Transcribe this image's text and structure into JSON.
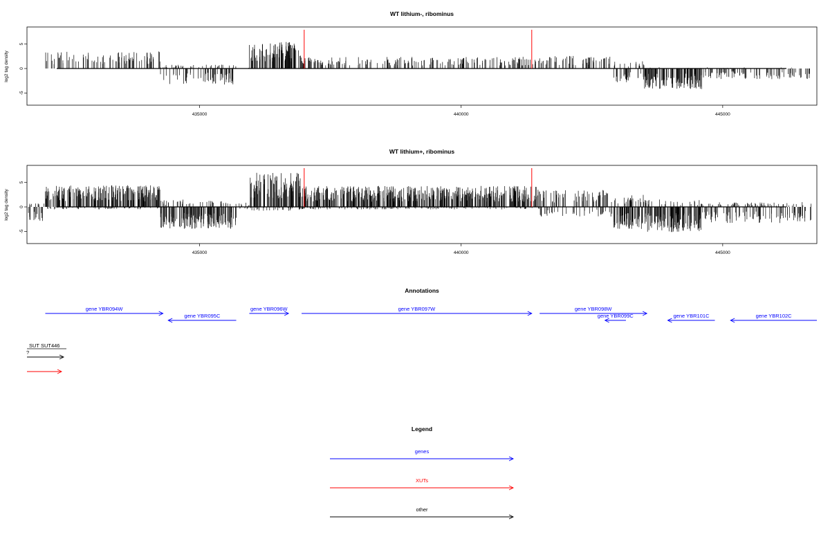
{
  "colors": {
    "genes": "#0000ff",
    "xuts": "#ff0000",
    "other": "#000000",
    "signal": "#000000",
    "axis": "#000000"
  },
  "chart_data": [
    {
      "type": "bar",
      "title": "WT lithium-, ribominus",
      "ylabel": "log2 tag density",
      "xlim": [
        431700,
        446800
      ],
      "ylim": [
        -7.5,
        8.5
      ],
      "yticks": [
        "5",
        "0",
        "-5"
      ],
      "ytick_values": [
        5,
        0,
        -5
      ],
      "xticks": [
        "435000",
        "440000",
        "445000"
      ],
      "xtick_values": [
        435000,
        440000,
        445000
      ],
      "markers_red": [
        437000,
        441350
      ],
      "profile": [
        {
          "start": 431700,
          "end": 432050,
          "pos": 0,
          "neg": 0
        },
        {
          "start": 432050,
          "end": 434250,
          "pos": 3.5,
          "neg": 0
        },
        {
          "start": 434250,
          "end": 435700,
          "pos": 0.8,
          "neg": -3.3
        },
        {
          "start": 435700,
          "end": 435950,
          "pos": 0.3,
          "neg": 0
        },
        {
          "start": 435950,
          "end": 436950,
          "pos": 5.5,
          "neg": 0
        },
        {
          "start": 436950,
          "end": 441500,
          "pos": 2.4,
          "neg": 0
        },
        {
          "start": 441500,
          "end": 442900,
          "pos": 2.6,
          "neg": 0
        },
        {
          "start": 442900,
          "end": 443500,
          "pos": 1.5,
          "neg": -3.0
        },
        {
          "start": 443500,
          "end": 444600,
          "pos": 0.3,
          "neg": -4.2
        },
        {
          "start": 444600,
          "end": 446700,
          "pos": 0.3,
          "neg": -2.2
        }
      ]
    },
    {
      "type": "bar",
      "title": "WT lithium+, ribominus",
      "ylabel": "log2 tag density",
      "xlim": [
        431700,
        446800
      ],
      "ylim": [
        -7.5,
        8.5
      ],
      "yticks": [
        "5",
        "0",
        "-5"
      ],
      "ytick_values": [
        5,
        0,
        -5
      ],
      "xticks": [
        "435000",
        "440000",
        "445000"
      ],
      "xtick_values": [
        435000,
        440000,
        445000
      ],
      "markers_red": [
        437000,
        441350
      ],
      "profile": [
        {
          "start": 431700,
          "end": 432050,
          "pos": 0.8,
          "neg": -3.0
        },
        {
          "start": 432050,
          "end": 434250,
          "pos": 4.5,
          "neg": -0.5
        },
        {
          "start": 434250,
          "end": 435700,
          "pos": 1.5,
          "neg": -4.5
        },
        {
          "start": 435700,
          "end": 435950,
          "pos": 1.0,
          "neg": -0.5
        },
        {
          "start": 435950,
          "end": 436950,
          "pos": 7.0,
          "neg": -0.8
        },
        {
          "start": 436950,
          "end": 441500,
          "pos": 4.3,
          "neg": -0.5
        },
        {
          "start": 441500,
          "end": 442900,
          "pos": 3.5,
          "neg": -2.0
        },
        {
          "start": 442900,
          "end": 443500,
          "pos": 2.5,
          "neg": -4.5
        },
        {
          "start": 443500,
          "end": 444600,
          "pos": 1.5,
          "neg": -5.2
        },
        {
          "start": 444600,
          "end": 446700,
          "pos": 1.0,
          "neg": -3.3
        }
      ]
    }
  ],
  "annotations": {
    "title": "Annotations",
    "features": [
      {
        "label": "gene YBR094W",
        "start": 432050,
        "end": 434300,
        "strand": "+",
        "row": 0,
        "kind": "genes"
      },
      {
        "label": "gene YBR095C",
        "start": 434400,
        "end": 435700,
        "strand": "-",
        "row": 1,
        "kind": "genes"
      },
      {
        "label": "gene YBR096W",
        "start": 435950,
        "end": 436700,
        "strand": "+",
        "row": 0,
        "kind": "genes"
      },
      {
        "label": "gene YBR097W",
        "start": 436950,
        "end": 441350,
        "strand": "+",
        "row": 0,
        "kind": "genes"
      },
      {
        "label": "gene YBR098W",
        "start": 441500,
        "end": 443550,
        "strand": "+",
        "row": 0,
        "kind": "genes"
      },
      {
        "label": "gene YBR099C",
        "start": 442750,
        "end": 443150,
        "strand": "-",
        "row": 1,
        "kind": "genes"
      },
      {
        "label": "gene YBR101C",
        "start": 443950,
        "end": 444850,
        "strand": "-",
        "row": 1,
        "kind": "genes"
      },
      {
        "label": "gene YBR102C",
        "start": 445150,
        "end": 447000,
        "strand": "-",
        "row": 1,
        "kind": "genes"
      }
    ],
    "other_feature": {
      "label": "SUT SUT446",
      "kind": "other"
    },
    "xut_feature": {
      "label": "",
      "kind": "xuts"
    }
  },
  "legend": {
    "title": "Legend",
    "entries": [
      {
        "label": "genes",
        "kind": "genes"
      },
      {
        "label": "XUTs",
        "kind": "xuts"
      },
      {
        "label": "other",
        "kind": "other"
      }
    ]
  }
}
